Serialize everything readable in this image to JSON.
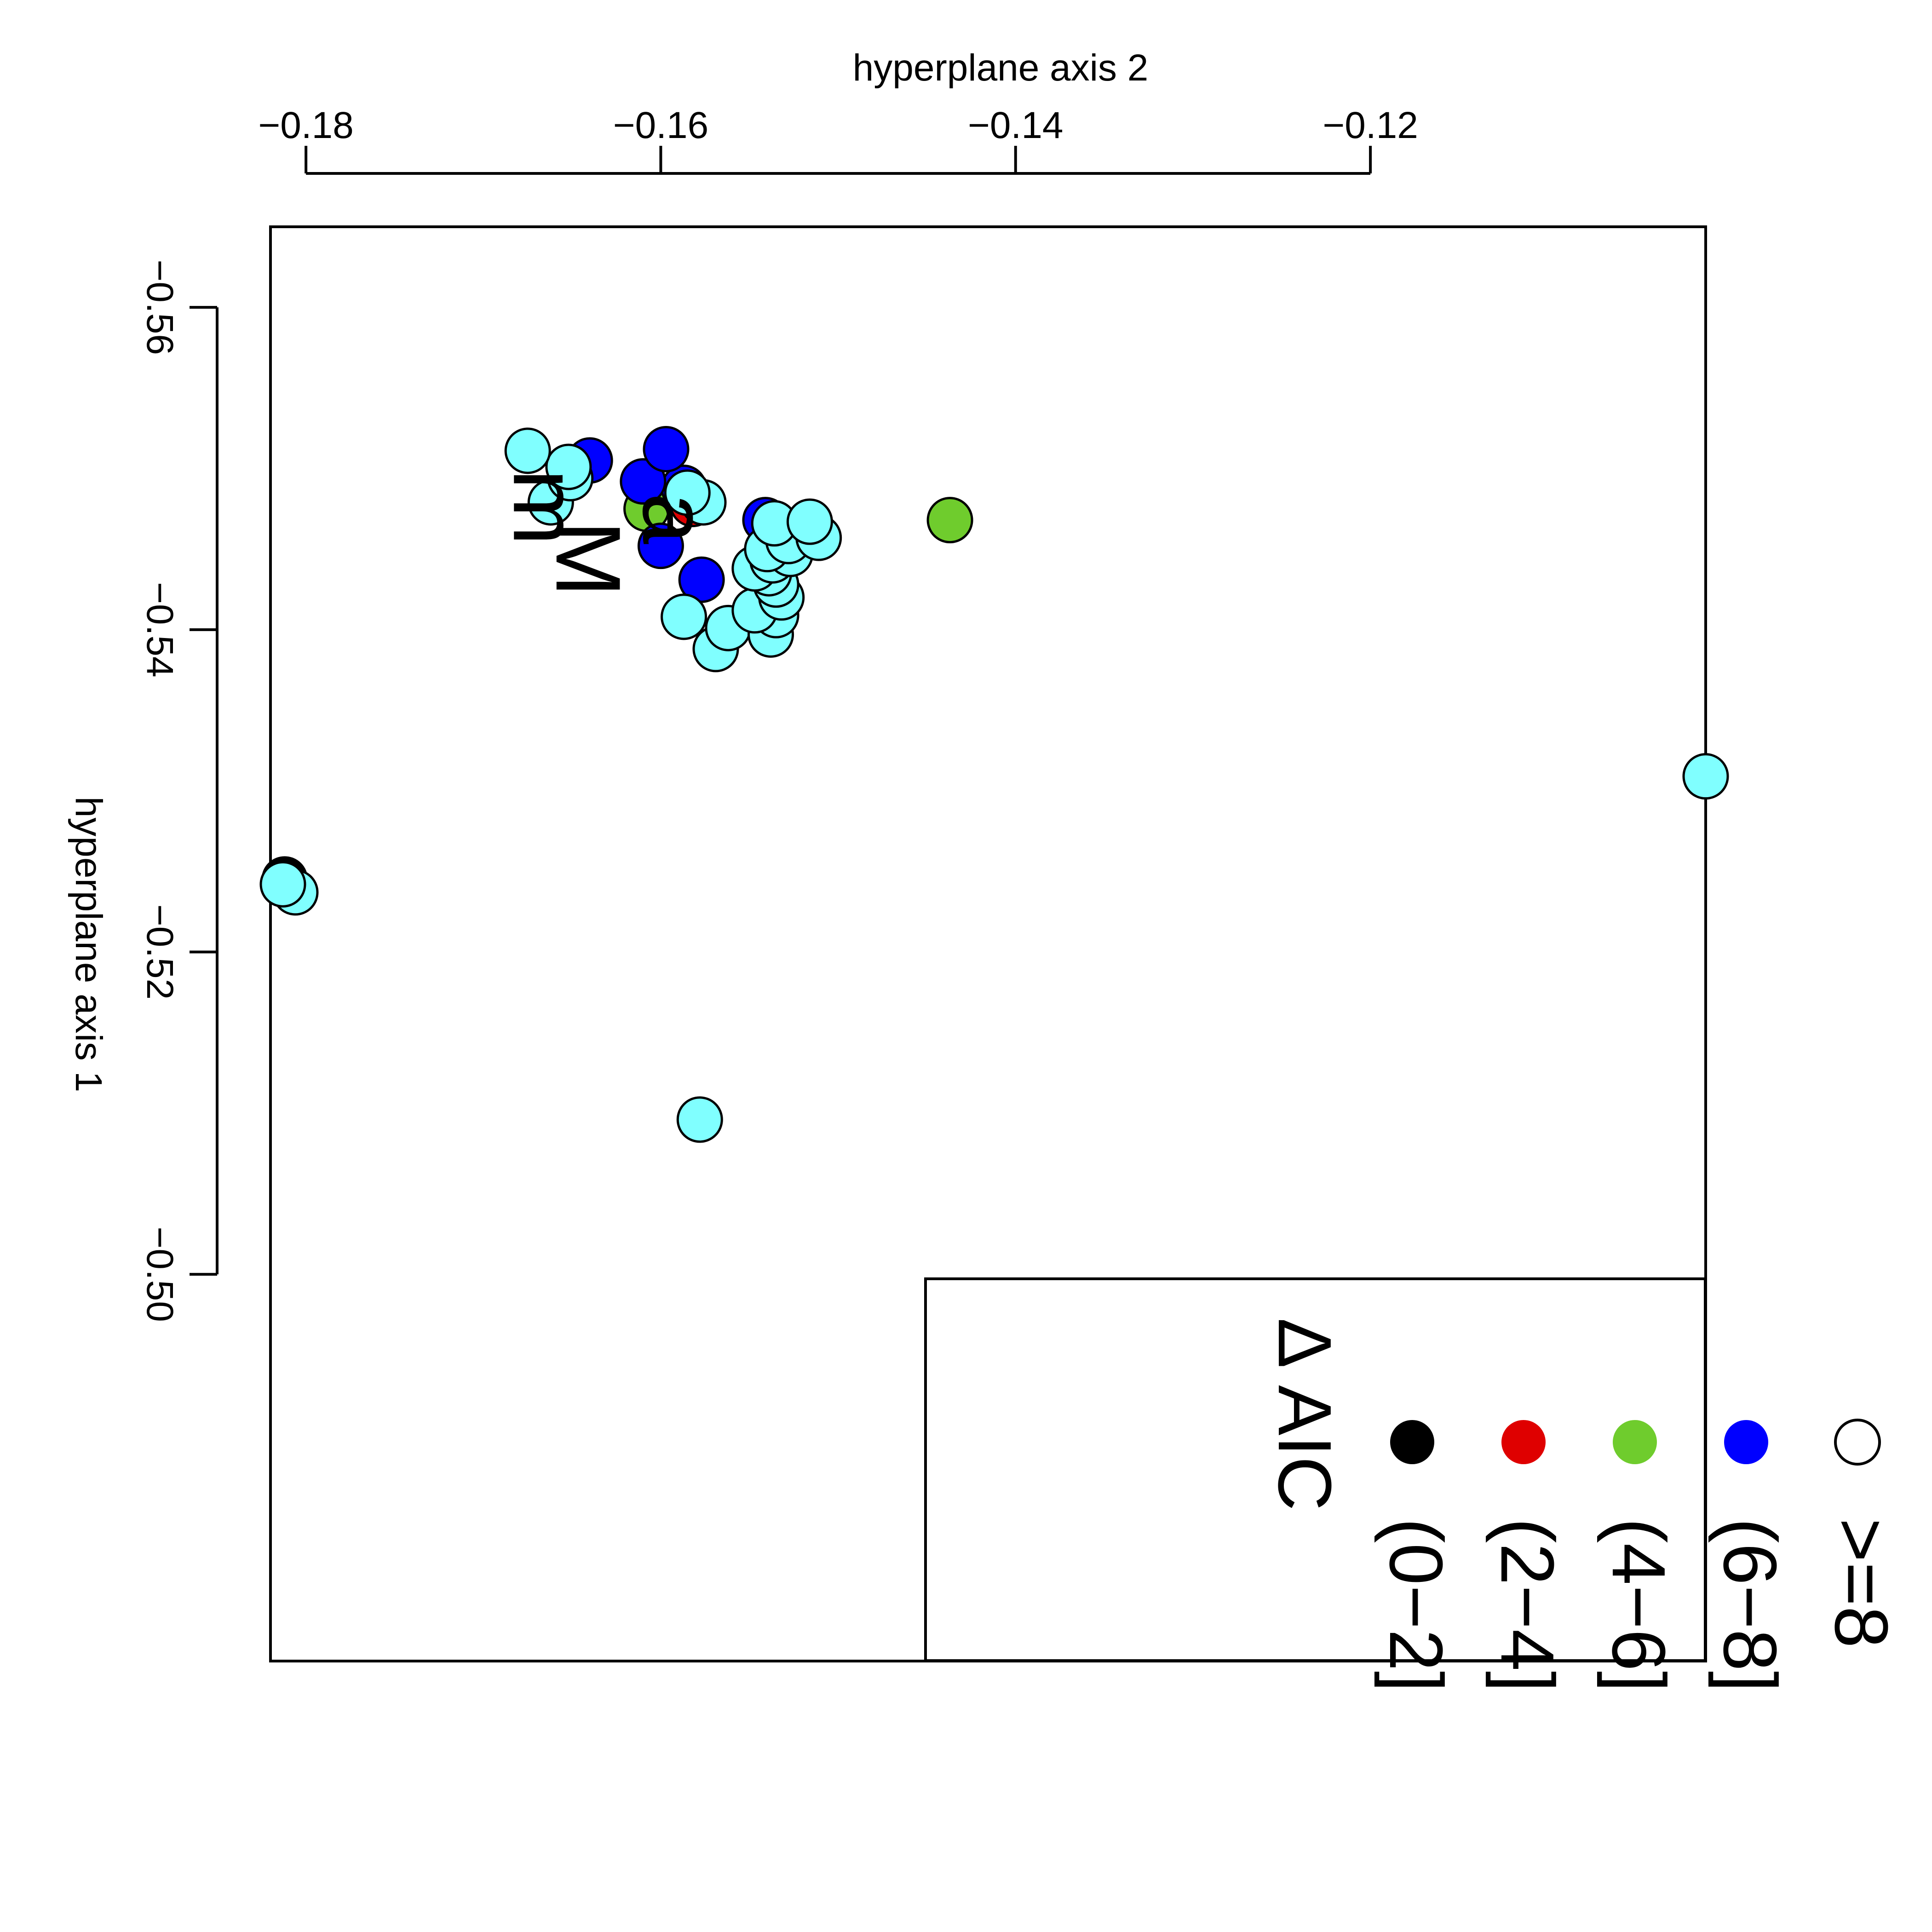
{
  "chart_data": {
    "type": "scatter",
    "xlabel": "hyperplane axis 1",
    "ylabel": "hyperplane axis 2",
    "xlim": [
      -0.565,
      -0.476
    ],
    "ylim": [
      -0.182,
      -0.1011
    ],
    "x_ticks": [
      -0.56,
      -0.54,
      -0.52,
      -0.5
    ],
    "x_tick_labels": [
      "−0.56",
      "−0.54",
      "−0.52",
      "−0.50"
    ],
    "y_ticks": [
      -0.18,
      -0.16,
      -0.14,
      -0.12
    ],
    "y_tick_labels": [
      "−0.18",
      "−0.16",
      "−0.14",
      "−0.12"
    ],
    "grid": false,
    "legend": {
      "title": "Δ AIC",
      "placement": "top-right",
      "entries": [
        {
          "label": "(0−2]",
          "color": "#000000",
          "hollow": false
        },
        {
          "label": "(2−4]",
          "color": "#df0000",
          "hollow": false
        },
        {
          "label": "(4−6]",
          "color": "#6fcc2d",
          "hollow": false
        },
        {
          "label": "(6−8]",
          "color": "#0000ff",
          "hollow": false
        },
        {
          "label": ">=8",
          "color": "#ffffff",
          "hollow": true
        }
      ]
    },
    "series": [
      {
        "name": "(0−2]",
        "color": "#000000",
        "points": [
          {
            "x": -0.5245,
            "y": -0.1812
          }
        ]
      },
      {
        "name": "(2−4]",
        "color": "#df0000",
        "points": [
          {
            "x": -0.5483,
            "y": -0.1585
          },
          {
            "x": -0.5478,
            "y": -0.1582
          }
        ]
      },
      {
        "name": "(4−6]",
        "color": "#6fcc2d",
        "points": [
          {
            "x": -0.5468,
            "y": -0.1437
          },
          {
            "x": -0.5475,
            "y": -0.1608
          }
        ]
      },
      {
        "name": "(6−8]",
        "color": "#0000ff",
        "points": [
          {
            "x": -0.5468,
            "y": -0.1541
          },
          {
            "x": -0.5431,
            "y": -0.1577
          },
          {
            "x": -0.5452,
            "y": -0.16
          },
          {
            "x": -0.5488,
            "y": -0.1587
          },
          {
            "x": -0.5492,
            "y": -0.161
          },
          {
            "x": -0.5512,
            "y": -0.1597
          },
          {
            "x": -0.5505,
            "y": -0.164
          }
        ]
      },
      {
        "name": ">=8",
        "color": "#80ffff",
        "points": [
          {
            "x": -0.5309,
            "y": -0.1011
          },
          {
            "x": -0.5096,
            "y": -0.1578
          },
          {
            "x": -0.5237,
            "y": -0.1806
          },
          {
            "x": -0.5242,
            "y": -0.1813
          },
          {
            "x": -0.5388,
            "y": -0.1569
          },
          {
            "x": -0.5401,
            "y": -0.1562
          },
          {
            "x": -0.5408,
            "y": -0.1587
          },
          {
            "x": -0.5397,
            "y": -0.1538
          },
          {
            "x": -0.5409,
            "y": -0.1535
          },
          {
            "x": -0.5412,
            "y": -0.1547
          },
          {
            "x": -0.542,
            "y": -0.1532
          },
          {
            "x": -0.5428,
            "y": -0.1535
          },
          {
            "x": -0.5435,
            "y": -0.1539
          },
          {
            "x": -0.5438,
            "y": -0.1547
          },
          {
            "x": -0.5443,
            "y": -0.1537
          },
          {
            "x": -0.5447,
            "y": -0.1527
          },
          {
            "x": -0.545,
            "y": -0.154
          },
          {
            "x": -0.5455,
            "y": -0.1528
          },
          {
            "x": -0.5457,
            "y": -0.1511
          },
          {
            "x": -0.5466,
            "y": -0.1536
          },
          {
            "x": -0.5467,
            "y": -0.1516
          },
          {
            "x": -0.5479,
            "y": -0.1576
          },
          {
            "x": -0.5485,
            "y": -0.1585
          },
          {
            "x": -0.5479,
            "y": -0.1662
          },
          {
            "x": -0.5494,
            "y": -0.1651
          },
          {
            "x": -0.5501,
            "y": -0.1652
          },
          {
            "x": -0.5511,
            "y": -0.1675
          }
        ]
      }
    ],
    "annotations": [
      {
        "text": "a",
        "x": -0.5469,
        "y": -0.1592
      },
      {
        "text": "m",
        "x": -0.5476,
        "y": -0.1665
      },
      {
        "text": "M",
        "x": -0.5444,
        "y": -0.1641
      }
    ]
  }
}
